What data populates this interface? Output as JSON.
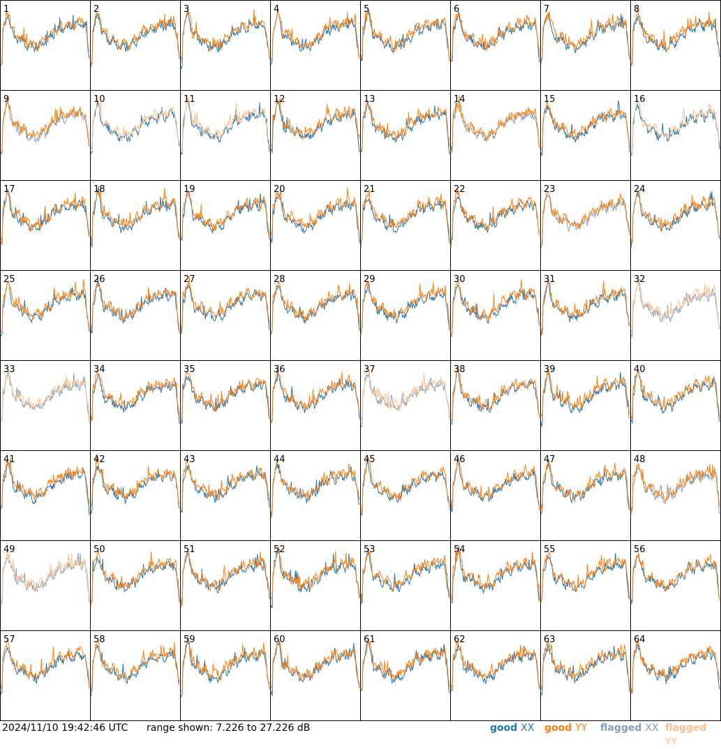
{
  "footer": {
    "timestamp": "2024/11/10 19:42:46 UTC",
    "range": "range shown: 7.226 to 27.226 dB"
  },
  "legend": [
    {
      "label": "good",
      "pol": "XX",
      "color": "#1f77b4"
    },
    {
      "label": "good",
      "pol": "YY",
      "color": "#ff7f0e"
    },
    {
      "label": "flagged",
      "pol": "XX",
      "color": "#7f9fbf"
    },
    {
      "label": "flagged",
      "pol": "YY",
      "color": "#ffbf8a"
    }
  ],
  "chart_data": {
    "type": "line",
    "grid": {
      "rows": 8,
      "cols": 8
    },
    "ylim_db": [
      7.226,
      27.226
    ],
    "panels": [
      {
        "id": "1",
        "xx": "good",
        "yy": "good"
      },
      {
        "id": "2",
        "xx": "good",
        "yy": "good"
      },
      {
        "id": "3",
        "xx": "good",
        "yy": "good"
      },
      {
        "id": "4",
        "xx": "good",
        "yy": "good"
      },
      {
        "id": "5",
        "xx": "good",
        "yy": "good"
      },
      {
        "id": "6",
        "xx": "good",
        "yy": "good"
      },
      {
        "id": "7",
        "xx": "good",
        "yy": "good"
      },
      {
        "id": "8",
        "xx": "good",
        "yy": "good"
      },
      {
        "id": "9",
        "xx": "flagged",
        "yy": "good"
      },
      {
        "id": "10",
        "xx": "good",
        "yy": "flagged"
      },
      {
        "id": "11",
        "xx": "good",
        "yy": "flagged"
      },
      {
        "id": "12",
        "xx": "good",
        "yy": "good"
      },
      {
        "id": "13",
        "xx": "good",
        "yy": "good"
      },
      {
        "id": "14",
        "xx": "flagged",
        "yy": "good"
      },
      {
        "id": "15",
        "xx": "good",
        "yy": "good"
      },
      {
        "id": "16",
        "xx": "good",
        "yy": "flagged"
      },
      {
        "id": "17",
        "xx": "good",
        "yy": "good"
      },
      {
        "id": "18",
        "xx": "good",
        "yy": "good"
      },
      {
        "id": "19",
        "xx": "good",
        "yy": "good"
      },
      {
        "id": "20",
        "xx": "good",
        "yy": "good"
      },
      {
        "id": "21",
        "xx": "good",
        "yy": "good"
      },
      {
        "id": "22",
        "xx": "good",
        "yy": "good"
      },
      {
        "id": "23",
        "xx": "flagged",
        "yy": "good"
      },
      {
        "id": "24",
        "xx": "good",
        "yy": "good"
      },
      {
        "id": "25",
        "xx": "good",
        "yy": "good"
      },
      {
        "id": "26",
        "xx": "good",
        "yy": "good"
      },
      {
        "id": "27",
        "xx": "good",
        "yy": "good"
      },
      {
        "id": "28",
        "xx": "good",
        "yy": "good"
      },
      {
        "id": "29",
        "xx": "good",
        "yy": "good"
      },
      {
        "id": "30",
        "xx": "good",
        "yy": "good"
      },
      {
        "id": "31",
        "xx": "good",
        "yy": "good"
      },
      {
        "id": "32",
        "xx": "flagged",
        "yy": "flagged"
      },
      {
        "id": "33",
        "xx": "flagged",
        "yy": "flagged"
      },
      {
        "id": "34",
        "xx": "good",
        "yy": "good"
      },
      {
        "id": "35",
        "xx": "good",
        "yy": "good"
      },
      {
        "id": "36",
        "xx": "good",
        "yy": "good"
      },
      {
        "id": "37",
        "xx": "flagged",
        "yy": "flagged"
      },
      {
        "id": "38",
        "xx": "good",
        "yy": "good"
      },
      {
        "id": "39",
        "xx": "good",
        "yy": "good"
      },
      {
        "id": "40",
        "xx": "good",
        "yy": "good"
      },
      {
        "id": "41",
        "xx": "good",
        "yy": "good"
      },
      {
        "id": "42",
        "xx": "good",
        "yy": "good"
      },
      {
        "id": "43",
        "xx": "good",
        "yy": "good"
      },
      {
        "id": "44",
        "xx": "good",
        "yy": "good"
      },
      {
        "id": "45",
        "xx": "good",
        "yy": "good"
      },
      {
        "id": "46",
        "xx": "good",
        "yy": "good"
      },
      {
        "id": "47",
        "xx": "good",
        "yy": "good"
      },
      {
        "id": "48",
        "xx": "flagged",
        "yy": "good"
      },
      {
        "id": "49",
        "xx": "flagged",
        "yy": "flagged"
      },
      {
        "id": "50",
        "xx": "good",
        "yy": "good"
      },
      {
        "id": "51",
        "xx": "good",
        "yy": "good"
      },
      {
        "id": "52",
        "xx": "good",
        "yy": "good"
      },
      {
        "id": "53",
        "xx": "good",
        "yy": "good"
      },
      {
        "id": "54",
        "xx": "good",
        "yy": "good"
      },
      {
        "id": "55",
        "xx": "good",
        "yy": "good"
      },
      {
        "id": "56",
        "xx": "good",
        "yy": "good"
      },
      {
        "id": "57",
        "xx": "good",
        "yy": "good"
      },
      {
        "id": "58",
        "xx": "good",
        "yy": "good"
      },
      {
        "id": "59",
        "xx": "good",
        "yy": "good"
      },
      {
        "id": "60",
        "xx": "good",
        "yy": "good"
      },
      {
        "id": "61",
        "xx": "good",
        "yy": "good"
      },
      {
        "id": "62",
        "xx": "good",
        "yy": "good"
      },
      {
        "id": "63",
        "xx": "good",
        "yy": "good"
      },
      {
        "id": "64",
        "xx": "good",
        "yy": "good"
      }
    ]
  }
}
